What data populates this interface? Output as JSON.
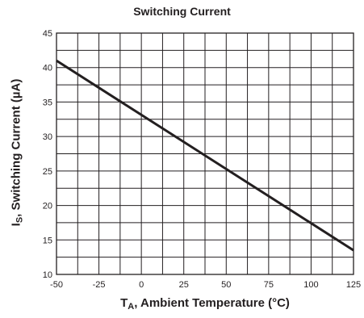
{
  "chart_data": {
    "type": "line",
    "title": "Switching Current",
    "xlabel": {
      "main": "T",
      "sub": "A",
      "rest": ", Ambient Temperature (°C)"
    },
    "ylabel": {
      "main": "I",
      "sub": "S",
      "rest": ", Switching Current (µA)"
    },
    "xlim": [
      -50,
      125
    ],
    "ylim": [
      10,
      45
    ],
    "xticks": [
      -50,
      -25,
      0,
      25,
      50,
      75,
      100,
      125
    ],
    "yticks": [
      10,
      15,
      20,
      25,
      30,
      35,
      40,
      45
    ],
    "grid": true,
    "series": [
      {
        "x": [
          -50,
          125
        ],
        "y": [
          41,
          13.5
        ]
      }
    ]
  }
}
